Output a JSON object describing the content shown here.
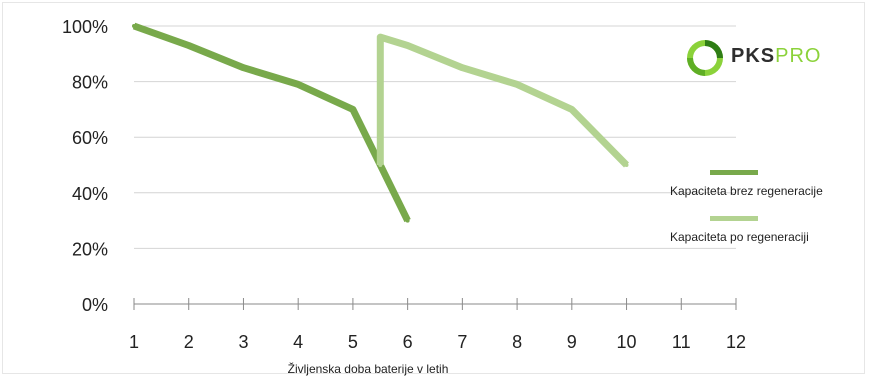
{
  "chart_data": {
    "type": "line",
    "xlabel": "Življenska doba baterije v letih",
    "ylabel": "",
    "xlim": [
      1,
      12
    ],
    "ylim": [
      0,
      100
    ],
    "x_ticks": [
      "1",
      "2",
      "3",
      "4",
      "5",
      "6",
      "7",
      "8",
      "9",
      "10",
      "11",
      "12"
    ],
    "y_ticks": [
      "0%",
      "20%",
      "40%",
      "60%",
      "80%",
      "100%"
    ],
    "grid": "horizontal",
    "legend_position": "right",
    "series": [
      {
        "name": "Kapaciteta brez regeneracije",
        "color": "#78a94b",
        "points": [
          [
            1,
            100
          ],
          [
            2,
            93
          ],
          [
            3,
            85
          ],
          [
            4,
            79
          ],
          [
            5,
            70
          ],
          [
            5.5,
            50
          ],
          [
            6,
            30
          ]
        ]
      },
      {
        "name": "Kapaciteta po regeneraciji",
        "color": "#b3d391",
        "points": [
          [
            5.5,
            50
          ],
          [
            5.5,
            96
          ],
          [
            6,
            93
          ],
          [
            7,
            85
          ],
          [
            8,
            79
          ],
          [
            9,
            70
          ],
          [
            10,
            50
          ]
        ]
      }
    ]
  },
  "logo": {
    "text_dark": "PKS",
    "text_accent": "PRO",
    "icon": "pks-logo-icon"
  }
}
